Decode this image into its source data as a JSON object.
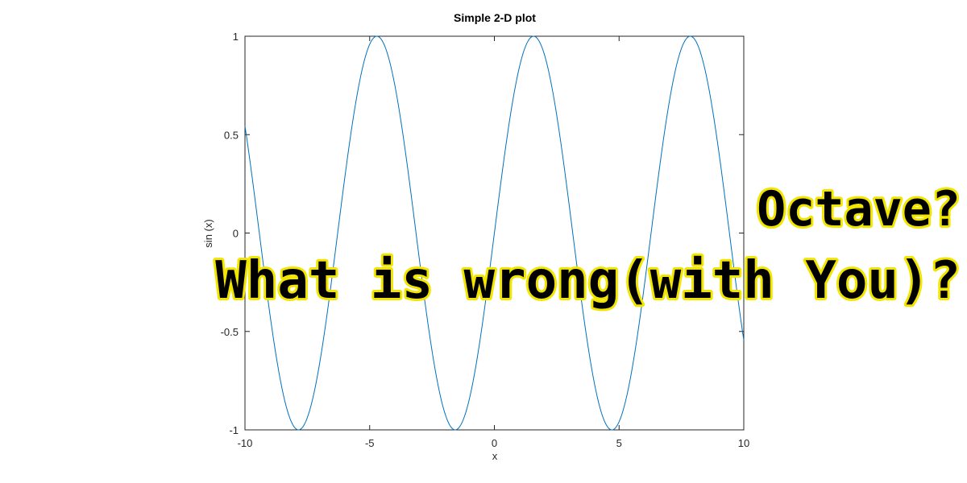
{
  "chart_data": {
    "type": "line",
    "title": "Simple 2-D plot",
    "xlabel": "x",
    "ylabel": "sin (x)",
    "xlim": [
      -10,
      10
    ],
    "ylim": [
      -1,
      1
    ],
    "x_ticks": [
      -10,
      -5,
      0,
      5,
      10
    ],
    "x_tick_labels": [
      "-10",
      "-5",
      "0",
      "5",
      "10"
    ],
    "y_ticks": [
      1,
      0.5,
      0,
      -0.5,
      -1
    ],
    "y_tick_labels": [
      "1",
      "0.5",
      "0",
      "-0.5",
      "-1"
    ],
    "grid": false,
    "series": [
      {
        "function": "sin",
        "x_start": -10,
        "x_end": 10,
        "samples": 400,
        "color": "#0072bd"
      }
    ]
  },
  "overlay": {
    "line1": "Octave?",
    "line2": "What is wrong(with You)?",
    "text_color": "#000000",
    "outline_color": "#f2e600"
  }
}
